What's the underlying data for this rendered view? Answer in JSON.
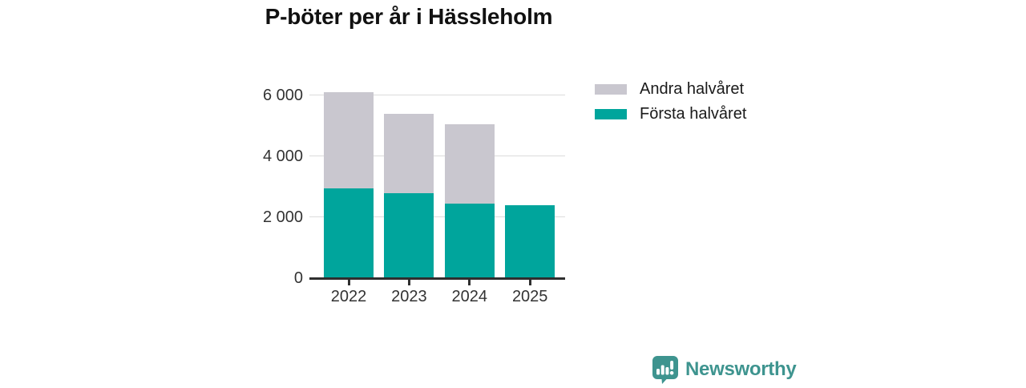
{
  "title": "P-böter per år i Hässleholm",
  "chart_data": {
    "type": "bar",
    "stacked": true,
    "title": "P-böter per år i Hässleholm",
    "categories": [
      "2022",
      "2023",
      "2024",
      "2025"
    ],
    "series": [
      {
        "name": "Första halvåret",
        "color": "#00a59c",
        "values": [
          2950,
          2800,
          2450,
          2400
        ]
      },
      {
        "name": "Andra halvåret",
        "color": "#c9c7cf",
        "values": [
          3150,
          2600,
          2600,
          0
        ]
      }
    ],
    "totals": [
      6100,
      5400,
      5050,
      2400
    ],
    "xlabel": "",
    "ylabel": "",
    "ylim": [
      0,
      6500
    ],
    "yticks": [
      {
        "value": 0,
        "label": "0"
      },
      {
        "value": 2000,
        "label": "2 000"
      },
      {
        "value": 4000,
        "label": "4 000"
      },
      {
        "value": 6000,
        "label": "6 000"
      }
    ],
    "grid": "horizontal",
    "legend_position": "top-right"
  },
  "legend": {
    "items": [
      {
        "label": "Andra halvåret",
        "color": "#c9c7cf"
      },
      {
        "label": "Första halvåret",
        "color": "#00a59c"
      }
    ]
  },
  "footer": {
    "brand": "Newsworthy",
    "brand_color": "#3e948f",
    "logo_icon": "bar-chart-speech-bubble-icon"
  },
  "colors": {
    "first_half": "#00a59c",
    "second_half": "#c9c7cf",
    "axis": "#2f2f2f",
    "gridline": "#dcdcdc",
    "text_dark": "#111111",
    "tick_text": "#333333"
  }
}
